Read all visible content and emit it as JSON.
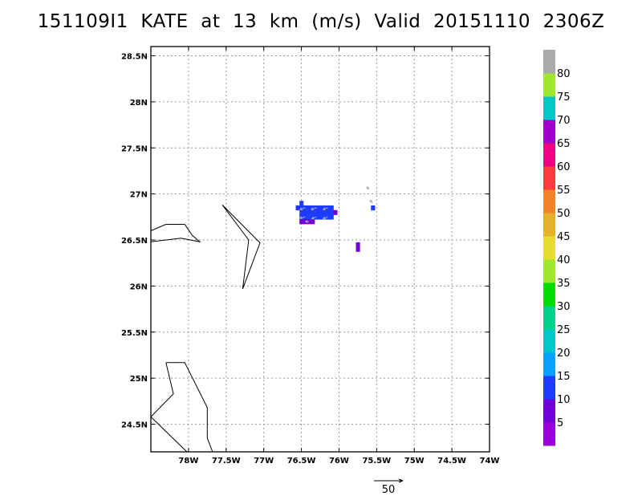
{
  "title": "151109I1  KATE  at  13  km  (m/s)  Valid  20151110  2306Z",
  "map": {
    "lon_range": [
      -78.5,
      -74.0
    ],
    "lat_range": [
      24.2,
      28.6
    ],
    "lat_ticks": [
      {
        "value": 24.5,
        "label": "24.5N"
      },
      {
        "value": 25.0,
        "label": "25N"
      },
      {
        "value": 25.5,
        "label": "25.5N"
      },
      {
        "value": 26.0,
        "label": "26N"
      },
      {
        "value": 26.5,
        "label": "26.5N"
      },
      {
        "value": 27.0,
        "label": "27N"
      },
      {
        "value": 27.5,
        "label": "27.5N"
      },
      {
        "value": 28.0,
        "label": "28N"
      },
      {
        "value": 28.5,
        "label": "28.5N"
      }
    ],
    "lon_ticks": [
      {
        "value": -78.0,
        "label": "78W"
      },
      {
        "value": -77.5,
        "label": "77.5W"
      },
      {
        "value": -77.0,
        "label": "77W"
      },
      {
        "value": -76.5,
        "label": "76.5W"
      },
      {
        "value": -76.0,
        "label": "76W"
      },
      {
        "value": -75.5,
        "label": "75.5W"
      },
      {
        "value": -75.0,
        "label": "75W"
      },
      {
        "value": -74.5,
        "label": "74.5W"
      },
      {
        "value": -74.0,
        "label": "74W"
      }
    ],
    "grid": true,
    "coastlines": [
      [
        [
          -78.5,
          26.6
        ],
        [
          -78.3,
          26.67
        ],
        [
          -78.05,
          26.67
        ],
        [
          -77.95,
          26.55
        ],
        [
          -77.85,
          26.48
        ],
        [
          -78.1,
          26.52
        ],
        [
          -78.5,
          26.48
        ]
      ],
      [
        [
          -77.55,
          26.88
        ],
        [
          -77.05,
          26.47
        ],
        [
          -77.28,
          25.97
        ],
        [
          -77.2,
          26.5
        ],
        [
          -77.55,
          26.88
        ]
      ],
      [
        [
          -78.3,
          25.17
        ],
        [
          -78.05,
          25.17
        ],
        [
          -77.75,
          24.68
        ],
        [
          -77.75,
          24.35
        ],
        [
          -77.68,
          24.2
        ]
      ],
      [
        [
          -78.3,
          25.17
        ],
        [
          -78.2,
          24.83
        ],
        [
          -78.5,
          24.58
        ],
        [
          -78.02,
          24.2
        ]
      ]
    ],
    "wind_cells": [
      {
        "lon": -76.5,
        "lat": 26.9,
        "value": 12
      },
      {
        "lon": -76.55,
        "lat": 26.85,
        "value": 11
      },
      {
        "lon": -76.5,
        "lat": 26.85,
        "value": 12
      },
      {
        "lon": -76.45,
        "lat": 26.85,
        "value": 13
      },
      {
        "lon": -76.4,
        "lat": 26.85,
        "value": 12
      },
      {
        "lon": -76.35,
        "lat": 26.85,
        "value": 13
      },
      {
        "lon": -76.3,
        "lat": 26.85,
        "value": 12
      },
      {
        "lon": -76.25,
        "lat": 26.85,
        "value": 14
      },
      {
        "lon": -76.2,
        "lat": 26.85,
        "value": 13
      },
      {
        "lon": -76.15,
        "lat": 26.85,
        "value": 12
      },
      {
        "lon": -76.1,
        "lat": 26.85,
        "value": 11
      },
      {
        "lon": -76.5,
        "lat": 26.8,
        "value": 13
      },
      {
        "lon": -76.45,
        "lat": 26.8,
        "value": 12
      },
      {
        "lon": -76.4,
        "lat": 26.8,
        "value": 14
      },
      {
        "lon": -76.35,
        "lat": 26.8,
        "value": 12
      },
      {
        "lon": -76.3,
        "lat": 26.8,
        "value": 13
      },
      {
        "lon": -76.25,
        "lat": 26.8,
        "value": 12
      },
      {
        "lon": -76.2,
        "lat": 26.8,
        "value": 13
      },
      {
        "lon": -76.15,
        "lat": 26.8,
        "value": 12
      },
      {
        "lon": -76.1,
        "lat": 26.8,
        "value": 12
      },
      {
        "lon": -76.05,
        "lat": 26.8,
        "value": 7
      },
      {
        "lon": -76.5,
        "lat": 26.75,
        "value": 12
      },
      {
        "lon": -76.45,
        "lat": 26.75,
        "value": 13
      },
      {
        "lon": -76.4,
        "lat": 26.75,
        "value": 12
      },
      {
        "lon": -76.35,
        "lat": 26.75,
        "value": 13
      },
      {
        "lon": -76.3,
        "lat": 26.75,
        "value": 12
      },
      {
        "lon": -76.25,
        "lat": 26.75,
        "value": 12
      },
      {
        "lon": -76.2,
        "lat": 26.75,
        "value": 13
      },
      {
        "lon": -76.15,
        "lat": 26.75,
        "value": 11
      },
      {
        "lon": -76.1,
        "lat": 26.75,
        "value": 12
      },
      {
        "lon": -76.5,
        "lat": 26.7,
        "value": 7
      },
      {
        "lon": -76.45,
        "lat": 26.7,
        "value": 8
      },
      {
        "lon": -76.4,
        "lat": 26.7,
        "value": 7
      },
      {
        "lon": -76.35,
        "lat": 26.7,
        "value": 6
      },
      {
        "lon": -75.55,
        "lat": 26.85,
        "value": 11
      },
      {
        "lon": -75.75,
        "lat": 26.45,
        "value": 7
      },
      {
        "lon": -75.75,
        "lat": 26.4,
        "value": 7
      }
    ],
    "vectors": [
      {
        "lon": -76.45,
        "lat": 26.85,
        "u": -9,
        "v": -3
      },
      {
        "lon": -76.3,
        "lat": 26.85,
        "u": -9,
        "v": -3
      },
      {
        "lon": -76.15,
        "lat": 26.85,
        "u": -8,
        "v": -3
      },
      {
        "lon": -76.45,
        "lat": 26.75,
        "u": -9,
        "v": -2
      },
      {
        "lon": -76.3,
        "lat": 26.75,
        "u": -8,
        "v": -3
      },
      {
        "lon": -76.15,
        "lat": 26.75,
        "u": -8,
        "v": -3
      },
      {
        "lon": -76.4,
        "lat": 26.7,
        "u": -6,
        "v": 0
      },
      {
        "lon": -75.55,
        "lat": 26.9,
        "u": -5,
        "v": 5
      },
      {
        "lon": -75.6,
        "lat": 27.05,
        "u": -4,
        "v": 4
      }
    ]
  },
  "colorbar": {
    "levels": [
      {
        "color": "#9b00d8",
        "label": "5"
      },
      {
        "color": "#7300d8",
        "label": "10"
      },
      {
        "color": "#1e3cff",
        "label": "15"
      },
      {
        "color": "#0aa0ff",
        "label": "20"
      },
      {
        "color": "#00c8c8",
        "label": "25"
      },
      {
        "color": "#00d28c",
        "label": "30"
      },
      {
        "color": "#00dc00",
        "label": "35"
      },
      {
        "color": "#a0e632",
        "label": "40"
      },
      {
        "color": "#e6dc32",
        "label": "45"
      },
      {
        "color": "#e6af2d",
        "label": "50"
      },
      {
        "color": "#f08228",
        "label": "55"
      },
      {
        "color": "#fa3c3c",
        "label": "60"
      },
      {
        "color": "#f00082",
        "label": "65"
      },
      {
        "color": "#a000c8",
        "label": "70"
      },
      {
        "color": "#00c8c8",
        "label": "75"
      },
      {
        "color": "#a0e632",
        "label": "80"
      },
      {
        "color": "#aaaaaa",
        "label": ""
      }
    ]
  },
  "reference_vector": {
    "label": "50"
  },
  "colors": {
    "vector": "#aaaaaa",
    "coast": "#000000",
    "grid": "#999999"
  }
}
